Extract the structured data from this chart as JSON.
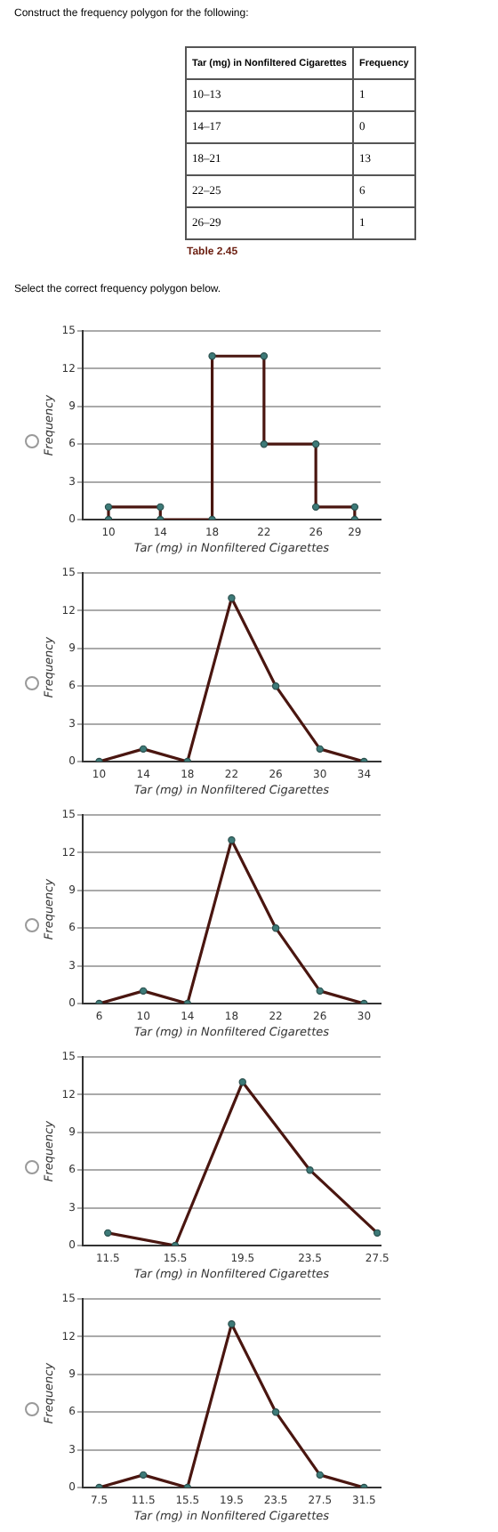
{
  "chart_data": [
    {
      "type": "other",
      "title": "Construct the frequency polygon for the following:",
      "xlabel": "Tar (mg) in Nonfiltered Cigarettes",
      "ylabel": "Frequency",
      "categories": [
        "10–13",
        "14–17",
        "18–21",
        "22–25",
        "26–29"
      ],
      "values": [
        1,
        0,
        13,
        6,
        1
      ],
      "data_labels": true,
      "annotations": [
        "Table 2.45",
        "Select the correct frequency polygon below."
      ]
    },
    {
      "type": "line",
      "xlabel": "Tar (mg) in Nonfiltered Cigarettes",
      "ylabel": "Frequency",
      "x": [
        10,
        10,
        14,
        14,
        18,
        18,
        22,
        22,
        26,
        26,
        29,
        29
      ],
      "series": [
        {
          "color": "#4a1610",
          "values": [
            0,
            1,
            1,
            0,
            0,
            13,
            13,
            6,
            6,
            1,
            1,
            0
          ]
        }
      ],
      "xlim": [
        8,
        31
      ],
      "xticks": [
        10,
        14,
        18,
        22,
        26,
        29
      ],
      "ylim": [
        0,
        15
      ],
      "yticks": [
        0,
        3,
        6,
        9,
        12,
        15
      ],
      "grid": "y",
      "marker": "circle",
      "line_style": "solid"
    },
    {
      "type": "line",
      "xlabel": "Tar (mg) in Nonfiltered Cigarettes",
      "ylabel": "Frequency",
      "x": [
        10,
        14,
        18,
        22,
        26,
        30,
        34
      ],
      "series": [
        {
          "color": "#4a1610",
          "values": [
            0,
            1,
            0,
            13,
            6,
            1,
            0
          ]
        }
      ],
      "xlim": [
        8.5,
        35.5
      ],
      "xticks": [
        10,
        14,
        18,
        22,
        26,
        30,
        34
      ],
      "ylim": [
        0,
        15
      ],
      "yticks": [
        0,
        3,
        6,
        9,
        12,
        15
      ],
      "grid": "y",
      "marker": "circle",
      "line_style": "solid"
    },
    {
      "type": "line",
      "xlabel": "Tar (mg) in Nonfiltered Cigarettes",
      "ylabel": "Frequency",
      "x": [
        6,
        10,
        14,
        18,
        22,
        26,
        30
      ],
      "series": [
        {
          "color": "#4a1610",
          "values": [
            0,
            1,
            0,
            13,
            6,
            1,
            0
          ]
        }
      ],
      "xlim": [
        4.5,
        31.5
      ],
      "xticks": [
        6,
        10,
        14,
        18,
        22,
        26,
        30
      ],
      "ylim": [
        0,
        15
      ],
      "yticks": [
        0,
        3,
        6,
        9,
        12,
        15
      ],
      "grid": "y",
      "marker": "circle",
      "line_style": "solid"
    },
    {
      "type": "line",
      "xlabel": "Tar (mg) in Nonfiltered Cigarettes",
      "ylabel": "Frequency",
      "x": [
        11.5,
        15.5,
        19.5,
        23.5,
        27.5
      ],
      "series": [
        {
          "color": "#4a1610",
          "values": [
            1,
            0,
            13,
            6,
            1
          ]
        }
      ],
      "xlim": [
        10,
        27.7
      ],
      "xticks": [
        11.5,
        15.5,
        19.5,
        23.5,
        27.5
      ],
      "ylim": [
        0,
        15
      ],
      "yticks": [
        0,
        3,
        6,
        9,
        12,
        15
      ],
      "grid": "y",
      "marker": "circle",
      "line_style": "solid"
    },
    {
      "type": "line",
      "xlabel": "Tar (mg) in Nonfiltered Cigarettes",
      "ylabel": "Frequency",
      "x": [
        7.5,
        11.5,
        15.5,
        19.5,
        23.5,
        27.5,
        31.5
      ],
      "series": [
        {
          "color": "#4a1610",
          "values": [
            0,
            1,
            0,
            13,
            6,
            1,
            0
          ]
        }
      ],
      "xlim": [
        6,
        33
      ],
      "xticks": [
        7.5,
        11.5,
        15.5,
        19.5,
        23.5,
        27.5,
        31.5
      ],
      "ylim": [
        0,
        15
      ],
      "yticks": [
        0,
        3,
        6,
        9,
        12,
        15
      ],
      "grid": "y",
      "marker": "circle",
      "line_style": "solid"
    }
  ]
}
